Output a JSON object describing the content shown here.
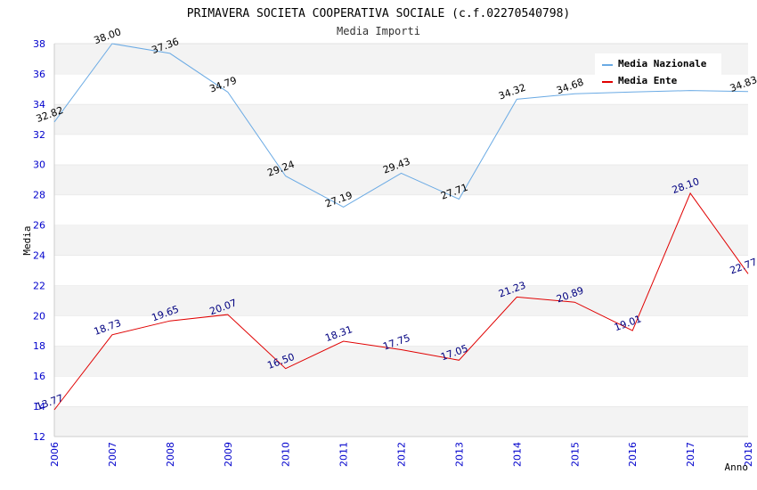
{
  "chart_data": {
    "type": "line",
    "title": "PRIMAVERA SOCIETA COOPERATIVA SOCIALE (c.f.02270540798)",
    "subtitle": "Media Importi",
    "xlabel": "Anno",
    "ylabel": "Media",
    "x": [
      "2006",
      "2007",
      "2008",
      "2009",
      "2010",
      "2011",
      "2012",
      "2013",
      "2014",
      "2015",
      "2016",
      "2017",
      "2018"
    ],
    "ylim": [
      12,
      38
    ],
    "yticks": [
      "12",
      "14",
      "16",
      "18",
      "20",
      "22",
      "24",
      "26",
      "28",
      "30",
      "32",
      "34",
      "36",
      "38"
    ],
    "grid": "horizontal alternating bands",
    "legend_position": "top-right",
    "series": [
      {
        "name": "Media Nazionale",
        "color": "#6aaae4",
        "values": [
          32.82,
          38.0,
          37.36,
          34.79,
          29.24,
          27.19,
          29.43,
          27.71,
          34.32,
          34.68,
          34.8,
          34.9,
          34.83
        ],
        "labels": [
          "32.82",
          "38.00",
          "37.36",
          "34.79",
          "29.24",
          "27.19",
          "29.43",
          "27.71",
          "34.32",
          "34.68",
          "",
          "",
          "34.83"
        ]
      },
      {
        "name": "Media Ente",
        "color": "#e00000",
        "values": [
          13.77,
          18.73,
          19.65,
          20.07,
          16.5,
          18.31,
          17.75,
          17.05,
          21.23,
          20.89,
          19.01,
          28.1,
          22.77
        ],
        "labels": [
          "13.77",
          "18.73",
          "19.65",
          "20.07",
          "16.50",
          "18.31",
          "17.75",
          "17.05",
          "21.23",
          "20.89",
          "19.01",
          "28.10",
          "22.77"
        ]
      }
    ]
  }
}
